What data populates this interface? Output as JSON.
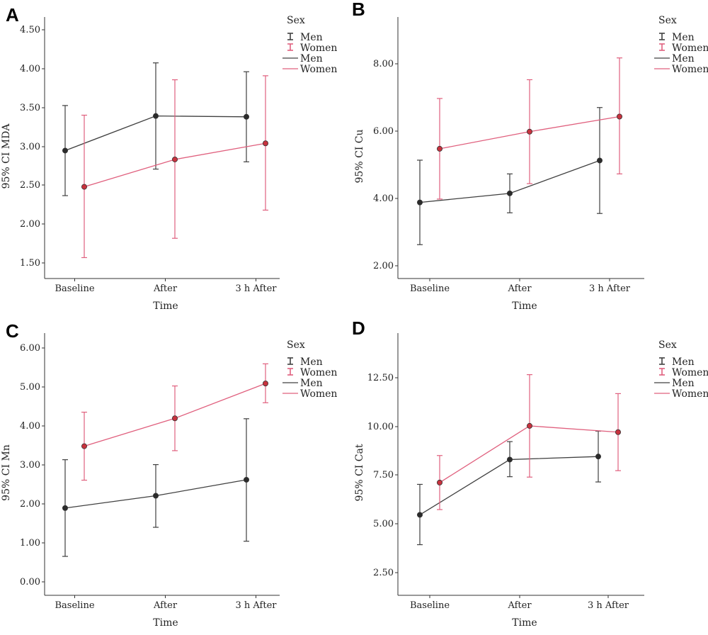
{
  "chart_data": [
    {
      "panel": "A",
      "type": "line",
      "xlabel": "Time",
      "ylabel": "95% CI MDA",
      "categories": [
        "Baseline",
        "After",
        "3 h After"
      ],
      "ylim": [
        1.35,
        4.6
      ],
      "yticks": [
        "1.50",
        "2.00",
        "2.50",
        "3.00",
        "3.50",
        "4.00",
        "4.50"
      ],
      "series": [
        {
          "name": "Men",
          "color": "#404040",
          "values": [
            2.94,
            3.37,
            3.36
          ],
          "lower": [
            2.38,
            2.71,
            2.8
          ],
          "upper": [
            3.5,
            4.03,
            3.92
          ]
        },
        {
          "name": "Women",
          "color": "#e0607e",
          "values": [
            2.49,
            2.83,
            3.03
          ],
          "lower": [
            1.61,
            1.85,
            2.2
          ],
          "upper": [
            3.38,
            3.82,
            3.87
          ]
        }
      ],
      "legend": {
        "title": "Sex",
        "items": [
          "Men",
          "Women",
          "Men",
          "Women"
        ]
      }
    },
    {
      "panel": "B",
      "type": "line",
      "xlabel": "Time",
      "ylabel": "95% CI Cu",
      "categories": [
        "Baseline",
        "After",
        "3 h After"
      ],
      "ylim": [
        1.5,
        9.3
      ],
      "yticks": [
        "2.00",
        "4.00",
        "6.00",
        "8.00"
      ],
      "series": [
        {
          "name": "Men",
          "color": "#404040",
          "values": [
            3.77,
            4.04,
            5.02
          ],
          "lower": [
            2.51,
            3.46,
            3.44
          ],
          "upper": [
            5.03,
            4.62,
            6.6
          ]
        },
        {
          "name": "Women",
          "color": "#e0607e",
          "values": [
            5.37,
            5.88,
            6.33
          ],
          "lower": [
            3.87,
            4.33,
            4.62
          ],
          "upper": [
            6.87,
            7.43,
            8.08
          ]
        }
      ],
      "legend": {
        "title": "Sex",
        "items": [
          "Men",
          "Women",
          "Men",
          "Women"
        ]
      }
    },
    {
      "panel": "C",
      "type": "line",
      "xlabel": "Time",
      "ylabel": "95% CI Mn",
      "categories": [
        "Baseline",
        "After",
        "3 h After"
      ],
      "ylim": [
        -0.25,
        6.15
      ],
      "yticks": [
        "0.00",
        "1.00",
        "2.00",
        "3.00",
        "4.00",
        "5.00",
        "6.00"
      ],
      "series": [
        {
          "name": "Men",
          "color": "#404040",
          "values": [
            1.88,
            2.18,
            2.57
          ],
          "lower": [
            0.7,
            1.41,
            1.07
          ],
          "upper": [
            3.06,
            2.94,
            4.06
          ]
        },
        {
          "name": "Women",
          "color": "#e0607e",
          "values": [
            3.39,
            4.07,
            4.92
          ],
          "lower": [
            2.56,
            3.28,
            4.45
          ],
          "upper": [
            4.22,
            4.86,
            5.4
          ]
        }
      ],
      "legend": {
        "title": "Sex",
        "items": [
          "Men",
          "Women",
          "Men",
          "Women"
        ]
      }
    },
    {
      "panel": "D",
      "type": "line",
      "xlabel": "Time",
      "ylabel": "95% CI Cat",
      "categories": [
        "Baseline",
        "After",
        "3 h After"
      ],
      "ylim": [
        1.5,
        14.5
      ],
      "yticks": [
        "2.50",
        "5.00",
        "7.50",
        "10.00",
        "12.50"
      ],
      "series": [
        {
          "name": "Men",
          "color": "#404040",
          "values": [
            5.49,
            8.23,
            8.38
          ],
          "lower": [
            4.01,
            7.38,
            7.12
          ],
          "upper": [
            7.0,
            9.12,
            9.64
          ]
        },
        {
          "name": "Women",
          "color": "#e0607e",
          "values": [
            7.09,
            9.9,
            9.59
          ],
          "lower": [
            5.75,
            7.36,
            7.68
          ],
          "upper": [
            8.43,
            12.44,
            11.5
          ]
        }
      ],
      "legend": {
        "title": "Sex",
        "items": [
          "Men",
          "Women",
          "Men",
          "Women"
        ]
      }
    }
  ]
}
